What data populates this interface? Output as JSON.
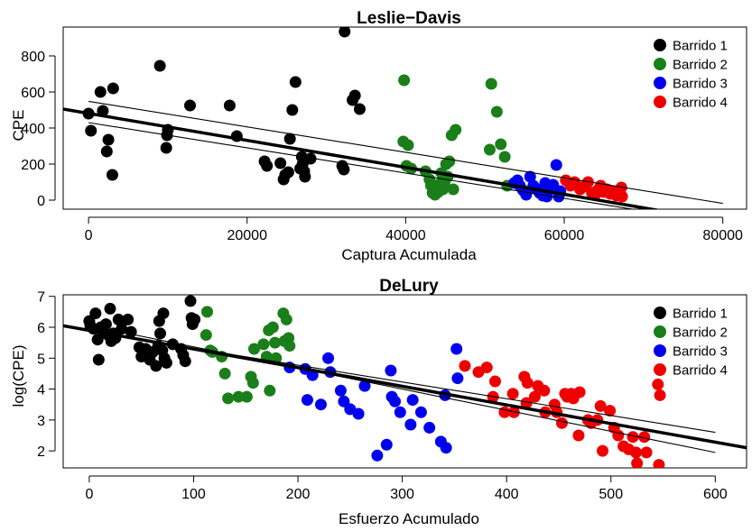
{
  "chart_data": [
    {
      "type": "scatter",
      "title": "Leslie−Davis",
      "xlabel": "Captura Acumulada",
      "ylabel": "CPE",
      "xlim": [
        -3200,
        83000
      ],
      "ylim": [
        -50,
        960
      ],
      "xticks": [
        0,
        20000,
        40000,
        60000,
        80000
      ],
      "xtick_labels": [
        "0",
        "20000",
        "40000",
        "60000",
        "80000"
      ],
      "yticks": [
        0,
        200,
        400,
        600,
        800
      ],
      "ytick_labels": [
        "0",
        "200",
        "400",
        "600",
        "800"
      ],
      "legend": "top-right",
      "series": [
        {
          "name": "Barrido 1",
          "color": "#000000",
          "points": [
            [
              0,
              480
            ],
            [
              300,
              385
            ],
            [
              1500,
              600
            ],
            [
              1800,
              495
            ],
            [
              2300,
              270
            ],
            [
              2500,
              335
            ],
            [
              3000,
              140
            ],
            [
              3100,
              620
            ],
            [
              9000,
              745
            ],
            [
              9800,
              290
            ],
            [
              9900,
              360
            ],
            [
              10000,
              390
            ],
            [
              12800,
              525
            ],
            [
              17800,
              525
            ],
            [
              18700,
              355
            ],
            [
              22200,
              215
            ],
            [
              22500,
              190
            ],
            [
              24200,
              205
            ],
            [
              24600,
              115
            ],
            [
              24800,
              140
            ],
            [
              25200,
              155
            ],
            [
              25400,
              340
            ],
            [
              25700,
              500
            ],
            [
              26100,
              655
            ],
            [
              26700,
              175
            ],
            [
              26900,
              240
            ],
            [
              27000,
              200
            ],
            [
              27200,
              160
            ],
            [
              27300,
              130
            ],
            [
              28000,
              230
            ],
            [
              32000,
              190
            ],
            [
              32200,
              170
            ],
            [
              32300,
              935
            ],
            [
              33300,
              555
            ],
            [
              33600,
              580
            ],
            [
              34200,
              505
            ]
          ]
        },
        {
          "name": "Barrido 2",
          "color": "#1a7f1a",
          "points": [
            [
              39700,
              325
            ],
            [
              39800,
              665
            ],
            [
              40100,
              190
            ],
            [
              40300,
              305
            ],
            [
              40700,
              175
            ],
            [
              42500,
              160
            ],
            [
              43000,
              115
            ],
            [
              43200,
              80
            ],
            [
              43400,
              40
            ],
            [
              43500,
              60
            ],
            [
              43700,
              30
            ],
            [
              43900,
              70
            ],
            [
              44100,
              45
            ],
            [
              44300,
              90
            ],
            [
              44500,
              150
            ],
            [
              44700,
              60
            ],
            [
              44900,
              100
            ],
            [
              45100,
              200
            ],
            [
              45300,
              130
            ],
            [
              45500,
              215
            ],
            [
              45800,
              360
            ],
            [
              46000,
              60
            ],
            [
              46300,
              390
            ],
            [
              50600,
              280
            ],
            [
              50800,
              645
            ],
            [
              51500,
              490
            ],
            [
              52000,
              310
            ],
            [
              52500,
              240
            ],
            [
              52800,
              80
            ]
          ]
        },
        {
          "name": "Barrido 3",
          "color": "#0000ee",
          "points": [
            [
              53700,
              95
            ],
            [
              54100,
              110
            ],
            [
              54400,
              80
            ],
            [
              54800,
              55
            ],
            [
              55200,
              30
            ],
            [
              55700,
              130
            ],
            [
              56100,
              80
            ],
            [
              56500,
              60
            ],
            [
              56900,
              40
            ],
            [
              57300,
              25
            ],
            [
              57600,
              95
            ],
            [
              57800,
              20
            ],
            [
              58200,
              60
            ],
            [
              58600,
              85
            ],
            [
              59000,
              195
            ],
            [
              59300,
              20
            ],
            [
              59500,
              50
            ]
          ]
        },
        {
          "name": "Barrido 4",
          "color": "#ee0000",
          "points": [
            [
              60200,
              110
            ],
            [
              60800,
              80
            ],
            [
              61300,
              100
            ],
            [
              62000,
              60
            ],
            [
              62500,
              75
            ],
            [
              63000,
              100
            ],
            [
              63500,
              40
            ],
            [
              63900,
              30
            ],
            [
              64200,
              55
            ],
            [
              64600,
              80
            ],
            [
              65000,
              45
            ],
            [
              65400,
              60
            ],
            [
              65800,
              35
            ],
            [
              66200,
              50
            ],
            [
              66600,
              25
            ],
            [
              67000,
              45
            ],
            [
              67200,
              70
            ],
            [
              67300,
              20
            ]
          ]
        }
      ],
      "fit_lines": [
        {
          "style": "thick",
          "points": [
            [
              -3200,
              505
            ],
            [
              83000,
              -140
            ]
          ]
        },
        {
          "style": "thin",
          "points": [
            [
              0,
              548
            ],
            [
              80000,
              -18
            ]
          ]
        },
        {
          "style": "thin",
          "points": [
            [
              0,
              430
            ],
            [
              80000,
              -130
            ]
          ]
        }
      ]
    },
    {
      "type": "scatter",
      "title": "DeLury",
      "xlabel": "Esfuerzo Acumulado",
      "ylabel": "log(CPE)",
      "xlim": [
        -25,
        630
      ],
      "ylim": [
        1.45,
        7.05
      ],
      "xticks": [
        0,
        100,
        200,
        300,
        400,
        500,
        600
      ],
      "xtick_labels": [
        "0",
        "100",
        "200",
        "300",
        "400",
        "500",
        "600"
      ],
      "yticks": [
        2,
        3,
        4,
        5,
        6,
        7
      ],
      "ytick_labels": [
        "2",
        "3",
        "4",
        "5",
        "6",
        "7"
      ],
      "legend": "top-right",
      "series": [
        {
          "name": "Barrido 1",
          "color": "#000000",
          "points": [
            [
              0,
              6.2
            ],
            [
              1,
              6.05
            ],
            [
              4,
              5.95
            ],
            [
              6,
              6.45
            ],
            [
              8,
              5.6
            ],
            [
              9,
              4.95
            ],
            [
              11,
              6.0
            ],
            [
              13,
              5.85
            ],
            [
              16,
              6.1
            ],
            [
              18,
              5.75
            ],
            [
              20,
              6.6
            ],
            [
              21,
              5.55
            ],
            [
              23,
              5.8
            ],
            [
              25,
              5.65
            ],
            [
              28,
              6.25
            ],
            [
              31,
              5.95
            ],
            [
              37,
              6.25
            ],
            [
              40,
              5.85
            ],
            [
              48,
              5.35
            ],
            [
              50,
              5.05
            ],
            [
              54,
              5.3
            ],
            [
              58,
              4.95
            ],
            [
              61,
              5.2
            ],
            [
              64,
              4.75
            ],
            [
              66,
              5.4
            ],
            [
              67,
              6.2
            ],
            [
              68,
              5.8
            ],
            [
              70,
              5.25
            ],
            [
              71,
              6.45
            ],
            [
              72,
              5.0
            ],
            [
              74,
              4.85
            ],
            [
              80,
              5.45
            ],
            [
              88,
              5.3
            ],
            [
              90,
              5.1
            ],
            [
              92,
              4.9
            ],
            [
              97,
              6.85
            ],
            [
              98,
              6.3
            ],
            [
              99,
              6.1
            ],
            [
              101,
              6.25
            ]
          ]
        },
        {
          "name": "Barrido 2",
          "color": "#1a7f1a",
          "points": [
            [
              112,
              5.75
            ],
            [
              113,
              6.5
            ],
            [
              116,
              5.25
            ],
            [
              118,
              5.2
            ],
            [
              127,
              5.05
            ],
            [
              130,
              4.5
            ],
            [
              133,
              3.7
            ],
            [
              143,
              3.75
            ],
            [
              151,
              3.75
            ],
            [
              155,
              4.4
            ],
            [
              157,
              4.2
            ],
            [
              158,
              5.3
            ],
            [
              167,
              5.45
            ],
            [
              170,
              5.05
            ],
            [
              172,
              5.9
            ],
            [
              173,
              3.95
            ],
            [
              176,
              6.0
            ],
            [
              178,
              5.5
            ],
            [
              179,
              5.0
            ],
            [
              186,
              6.45
            ],
            [
              187,
              5.55
            ],
            [
              189,
              6.25
            ],
            [
              191,
              5.65
            ],
            [
              192,
              5.4
            ]
          ]
        },
        {
          "name": "Barrido 3",
          "color": "#0000ee",
          "points": [
            [
              192,
              4.7
            ],
            [
              207,
              4.65
            ],
            [
              209,
              3.65
            ],
            [
              214,
              4.45
            ],
            [
              222,
              3.5
            ],
            [
              229,
              5.0
            ],
            [
              231,
              4.55
            ],
            [
              241,
              3.95
            ],
            [
              244,
              3.6
            ],
            [
              250,
              3.35
            ],
            [
              258,
              3.2
            ],
            [
              264,
              4.1
            ],
            [
              276,
              1.85
            ],
            [
              285,
              2.2
            ],
            [
              289,
              4.6
            ],
            [
              290,
              3.75
            ],
            [
              293,
              3.6
            ],
            [
              298,
              3.25
            ],
            [
              308,
              2.85
            ],
            [
              310,
              3.65
            ],
            [
              318,
              3.25
            ],
            [
              326,
              2.75
            ],
            [
              337,
              2.3
            ],
            [
              341,
              3.8
            ],
            [
              342,
              2.1
            ],
            [
              352,
              5.3
            ],
            [
              353,
              4.35
            ]
          ]
        },
        {
          "name": "Barrido 4",
          "color": "#ee0000",
          "points": [
            [
              360,
              4.75
            ],
            [
              373,
              4.55
            ],
            [
              381,
              4.7
            ],
            [
              387,
              3.75
            ],
            [
              389,
              4.25
            ],
            [
              398,
              3.25
            ],
            [
              406,
              3.85
            ],
            [
              407,
              3.25
            ],
            [
              417,
              4.4
            ],
            [
              419,
              3.55
            ],
            [
              420,
              4.2
            ],
            [
              427,
              3.75
            ],
            [
              430,
              4.1
            ],
            [
              436,
              3.95
            ],
            [
              437,
              3.25
            ],
            [
              446,
              3.5
            ],
            [
              448,
              3.25
            ],
            [
              453,
              2.9
            ],
            [
              456,
              3.85
            ],
            [
              458,
              3.75
            ],
            [
              462,
              3.85
            ],
            [
              464,
              3.7
            ],
            [
              469,
              2.5
            ],
            [
              470,
              3.9
            ],
            [
              478,
              3.0
            ],
            [
              481,
              2.9
            ],
            [
              487,
              3.0
            ],
            [
              490,
              3.45
            ],
            [
              492,
              2.0
            ],
            [
              499,
              3.3
            ],
            [
              503,
              2.75
            ],
            [
              507,
              2.5
            ],
            [
              512,
              2.15
            ],
            [
              517,
              2.05
            ],
            [
              521,
              2.45
            ],
            [
              524,
              1.95
            ],
            [
              525,
              1.6
            ],
            [
              532,
              2.45
            ],
            [
              534,
              1.95
            ],
            [
              545,
              4.15
            ],
            [
              546,
              1.55
            ],
            [
              547,
              3.8
            ]
          ]
        }
      ],
      "fit_lines": [
        {
          "style": "thick",
          "points": [
            [
              -25,
              6.05
            ],
            [
              630,
              2.1
            ]
          ]
        },
        {
          "style": "thin",
          "points": [
            [
              0,
              5.86
            ],
            [
              600,
              2.6
            ]
          ]
        },
        {
          "style": "thin",
          "points": [
            [
              0,
              6.05
            ],
            [
              600,
              1.95
            ]
          ]
        }
      ]
    }
  ]
}
